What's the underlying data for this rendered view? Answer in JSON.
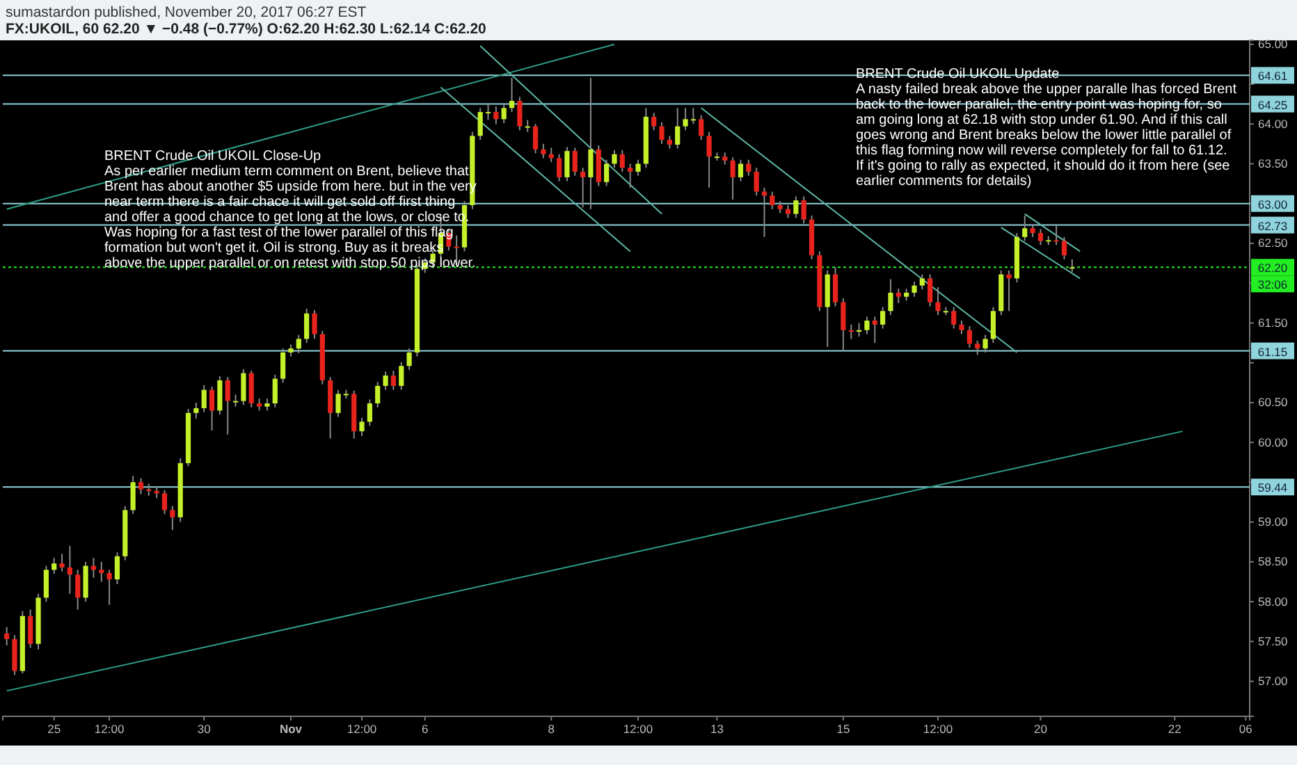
{
  "chart_data": {
    "type": "candlestick",
    "subtitle": "sumastardon published, November 20, 2017 06:27 EST",
    "title": "FX:UKOIL, 60  62.20 ▼ −0.48 (−0.77%)  O:62.20 H:62.30 L:62.14 C:62.20",
    "annotations": [
      "BRENT Crude Oil  UKOIL  Close-Up\nAs per earlier medium term comment on Brent, believe that\nBrent has about another $5 upside from here. but in the very\nnear term there is a fair chace it will get sold off first thing\nand offer a good chance to get long at the lows, or close to.\nWas hoping for a fast test of the lower parallel of this flag\nformation but won't get it. Oil is strong. Buy as it breaks\nabove the upper parallel  or on retest with stop 50 pips lower.",
      "BRENT Crude Oil  UKOIL  Update\nA nasty failed break above the upper paralle lhas forced Brent\nback to the lower parallel, the entry point was hoping for, so\nam going long at 62.18 with stop under 61.90. And if this call\ngoes wrong and Brent breaks below the lower little parallel of\nthis flag forming now will reverse completely for fall to 61.12.\nIf it's going to rally as expected, it should do it from here (see\nearlier comments for details)",
      "32:06"
    ],
    "categories": [
      null,
      null,
      null,
      null,
      null,
      null,
      "25",
      null,
      null,
      null,
      null,
      null,
      null,
      "12:00",
      null,
      null,
      null,
      null,
      null,
      null,
      null,
      null,
      null,
      null,
      null,
      "30",
      null,
      null,
      null,
      null,
      null,
      null,
      null,
      null,
      null,
      null,
      "Nov",
      null,
      null,
      null,
      null,
      null,
      null,
      null,
      null,
      "12:00",
      null,
      null,
      null,
      null,
      null,
      null,
      null,
      "6",
      null,
      null,
      null,
      null,
      null,
      null,
      null,
      null,
      null,
      null,
      null,
      null,
      null,
      null,
      null,
      "8",
      null,
      null,
      null,
      null,
      null,
      null,
      null,
      null,
      null,
      null,
      "12:00",
      null,
      null,
      null,
      null,
      null,
      null,
      null,
      null,
      null,
      "13",
      null,
      null,
      null,
      null,
      null,
      null,
      null,
      null,
      null,
      null,
      null,
      null,
      null,
      null,
      null,
      "15",
      null,
      null,
      null,
      null,
      null,
      null,
      null,
      null,
      null,
      null,
      null,
      "12:00",
      null,
      null,
      null,
      null,
      null,
      null,
      null,
      null,
      null,
      null,
      null,
      null,
      "20",
      null,
      null,
      null,
      null,
      null,
      null,
      null,
      null,
      null,
      null,
      null,
      null,
      null,
      null,
      null,
      null,
      "22",
      null,
      null,
      null,
      null,
      null,
      null,
      null,
      null,
      "06"
    ],
    "ohlc": [
      [
        57.6,
        57.68,
        57.45,
        57.53
      ],
      [
        57.53,
        57.58,
        57.08,
        57.13
      ],
      [
        57.13,
        57.88,
        57.1,
        57.82
      ],
      [
        57.82,
        57.9,
        57.42,
        57.47
      ],
      [
        57.47,
        58.1,
        57.4,
        58.05
      ],
      [
        58.05,
        58.45,
        58.0,
        58.4
      ],
      [
        58.4,
        58.55,
        58.35,
        58.48
      ],
      [
        58.48,
        58.6,
        58.38,
        58.43
      ],
      [
        58.43,
        58.7,
        58.1,
        58.34
      ],
      [
        58.34,
        58.4,
        57.9,
        58.05
      ],
      [
        58.05,
        58.5,
        58.0,
        58.45
      ],
      [
        58.45,
        58.55,
        58.3,
        58.4
      ],
      [
        58.4,
        58.5,
        58.25,
        58.36
      ],
      [
        58.36,
        58.4,
        57.96,
        58.28
      ],
      [
        58.28,
        58.62,
        58.22,
        58.57
      ],
      [
        58.57,
        59.2,
        58.52,
        59.15
      ],
      [
        59.15,
        59.58,
        59.1,
        59.5
      ],
      [
        59.5,
        59.55,
        59.35,
        59.41
      ],
      [
        59.41,
        59.48,
        59.33,
        59.39
      ],
      [
        59.39,
        59.45,
        59.3,
        59.36
      ],
      [
        59.36,
        59.4,
        59.1,
        59.15
      ],
      [
        59.15,
        59.2,
        58.9,
        59.06
      ],
      [
        59.06,
        59.8,
        59.0,
        59.74
      ],
      [
        59.74,
        60.42,
        59.7,
        60.37
      ],
      [
        60.37,
        60.5,
        60.3,
        60.43
      ],
      [
        60.43,
        60.72,
        60.38,
        60.66
      ],
      [
        60.66,
        60.7,
        60.15,
        60.4
      ],
      [
        60.4,
        60.83,
        60.35,
        60.78
      ],
      [
        60.78,
        60.82,
        60.1,
        60.52
      ],
      [
        60.52,
        60.6,
        60.45,
        60.52
      ],
      [
        60.52,
        60.92,
        60.47,
        60.87
      ],
      [
        60.87,
        60.9,
        60.44,
        60.49
      ],
      [
        60.49,
        60.55,
        60.4,
        60.45
      ],
      [
        60.45,
        60.55,
        60.4,
        60.49
      ],
      [
        60.49,
        60.85,
        60.44,
        60.8
      ],
      [
        60.8,
        61.18,
        60.75,
        61.13
      ],
      [
        61.13,
        61.23,
        61.08,
        61.18
      ],
      [
        61.18,
        61.35,
        61.12,
        61.3
      ],
      [
        61.3,
        61.68,
        61.25,
        61.62
      ],
      [
        61.62,
        61.66,
        61.3,
        61.36
      ],
      [
        61.36,
        61.4,
        60.73,
        60.78
      ],
      [
        60.78,
        60.82,
        60.05,
        60.37
      ],
      [
        60.37,
        60.66,
        60.32,
        60.61
      ],
      [
        60.61,
        60.66,
        60.55,
        60.61
      ],
      [
        60.61,
        60.65,
        60.05,
        60.14
      ],
      [
        60.14,
        60.31,
        60.08,
        60.26
      ],
      [
        60.26,
        60.54,
        60.21,
        60.49
      ],
      [
        60.49,
        60.76,
        60.44,
        60.71
      ],
      [
        60.71,
        60.89,
        60.66,
        60.84
      ],
      [
        60.84,
        60.9,
        60.66,
        60.71
      ],
      [
        60.71,
        61.01,
        60.66,
        60.96
      ],
      [
        60.96,
        61.18,
        60.91,
        61.13
      ],
      [
        61.13,
        62.23,
        61.08,
        62.18
      ],
      [
        62.18,
        62.31,
        62.13,
        62.26
      ],
      [
        62.26,
        62.42,
        62.21,
        62.37
      ],
      [
        62.37,
        62.87,
        62.32,
        62.63
      ],
      [
        62.63,
        62.68,
        62.41,
        62.46
      ],
      [
        62.46,
        62.6,
        62.22,
        62.45
      ],
      [
        62.45,
        63.03,
        62.4,
        62.98
      ],
      [
        62.98,
        63.9,
        62.93,
        63.85
      ],
      [
        63.85,
        64.2,
        63.8,
        64.15
      ],
      [
        64.15,
        64.25,
        64.05,
        64.15
      ],
      [
        64.15,
        64.22,
        64.0,
        64.06
      ],
      [
        64.06,
        64.25,
        64.01,
        64.2
      ],
      [
        64.2,
        64.58,
        64.15,
        64.29
      ],
      [
        64.29,
        64.34,
        63.92,
        63.97
      ],
      [
        63.97,
        64.05,
        63.9,
        63.97
      ],
      [
        63.97,
        64.0,
        63.63,
        63.68
      ],
      [
        63.68,
        63.75,
        63.57,
        63.62
      ],
      [
        63.62,
        63.7,
        63.52,
        63.57
      ],
      [
        63.57,
        63.62,
        63.28,
        63.33
      ],
      [
        63.33,
        63.71,
        63.28,
        63.66
      ],
      [
        63.66,
        63.7,
        63.35,
        63.4
      ],
      [
        63.4,
        63.45,
        62.95,
        63.33
      ],
      [
        63.33,
        64.58,
        62.93,
        63.68
      ],
      [
        63.68,
        63.73,
        63.22,
        63.27
      ],
      [
        63.27,
        63.55,
        63.22,
        63.5
      ],
      [
        63.5,
        63.67,
        63.45,
        63.62
      ],
      [
        63.62,
        63.67,
        63.4,
        63.45
      ],
      [
        63.45,
        63.5,
        63.2,
        63.4
      ],
      [
        63.4,
        63.55,
        63.35,
        63.5
      ],
      [
        63.5,
        64.2,
        63.45,
        64.09
      ],
      [
        64.09,
        64.14,
        63.92,
        63.97
      ],
      [
        63.97,
        64.02,
        63.75,
        63.8
      ],
      [
        63.8,
        63.85,
        63.69,
        63.74
      ],
      [
        63.74,
        64.2,
        63.69,
        63.97
      ],
      [
        63.97,
        64.2,
        63.92,
        64.06
      ],
      [
        64.06,
        64.2,
        64.0,
        64.06
      ],
      [
        64.06,
        64.11,
        63.8,
        63.85
      ],
      [
        63.85,
        63.9,
        63.2,
        63.59
      ],
      [
        63.59,
        63.64,
        63.54,
        63.59
      ],
      [
        63.59,
        63.64,
        63.49,
        63.54
      ],
      [
        63.54,
        63.58,
        63.05,
        63.33
      ],
      [
        63.33,
        63.55,
        63.28,
        63.5
      ],
      [
        63.5,
        63.55,
        63.35,
        63.4
      ],
      [
        63.4,
        63.45,
        63.1,
        63.15
      ],
      [
        63.15,
        63.2,
        62.58,
        63.1
      ],
      [
        63.1,
        63.15,
        62.93,
        62.98
      ],
      [
        62.98,
        63.03,
        62.88,
        62.93
      ],
      [
        62.93,
        62.98,
        62.82,
        62.87
      ],
      [
        62.87,
        63.09,
        62.82,
        63.04
      ],
      [
        63.04,
        63.09,
        62.75,
        62.8
      ],
      [
        62.8,
        62.85,
        62.3,
        62.35
      ],
      [
        62.35,
        62.4,
        61.65,
        61.7
      ],
      [
        61.7,
        62.16,
        61.2,
        62.11
      ],
      [
        62.11,
        62.2,
        61.71,
        61.76
      ],
      [
        61.76,
        61.81,
        61.15,
        61.41
      ],
      [
        61.41,
        61.48,
        61.3,
        61.39
      ],
      [
        61.39,
        61.5,
        61.33,
        61.41
      ],
      [
        61.41,
        61.58,
        61.36,
        61.53
      ],
      [
        61.53,
        61.58,
        61.25,
        61.48
      ],
      [
        61.48,
        61.7,
        61.43,
        61.65
      ],
      [
        61.65,
        62.05,
        61.6,
        61.88
      ],
      [
        61.88,
        61.93,
        61.75,
        61.83
      ],
      [
        61.83,
        61.93,
        61.78,
        61.88
      ],
      [
        61.88,
        62.02,
        61.83,
        61.97
      ],
      [
        61.97,
        62.11,
        61.92,
        62.06
      ],
      [
        62.06,
        62.11,
        61.71,
        61.76
      ],
      [
        61.76,
        61.95,
        61.6,
        61.65
      ],
      [
        61.65,
        61.7,
        61.6,
        61.65
      ],
      [
        61.65,
        61.7,
        61.43,
        61.48
      ],
      [
        61.48,
        61.53,
        61.36,
        61.41
      ],
      [
        61.41,
        61.46,
        61.19,
        61.24
      ],
      [
        61.24,
        61.28,
        61.1,
        61.18
      ],
      [
        61.18,
        61.35,
        61.13,
        61.3
      ],
      [
        61.3,
        61.7,
        61.25,
        61.65
      ],
      [
        61.65,
        62.16,
        61.6,
        62.11
      ],
      [
        62.11,
        62.16,
        61.65,
        62.06
      ],
      [
        62.06,
        62.63,
        62.01,
        62.58
      ],
      [
        62.58,
        62.85,
        62.53,
        62.69
      ],
      [
        62.69,
        62.74,
        62.58,
        62.63
      ],
      [
        62.63,
        62.68,
        62.48,
        62.53
      ],
      [
        62.53,
        62.59,
        62.48,
        62.54
      ],
      [
        62.54,
        62.72,
        62.48,
        62.53
      ],
      [
        62.53,
        62.58,
        62.3,
        62.35
      ],
      [
        62.2,
        62.3,
        62.14,
        62.2
      ],
      null,
      null,
      null,
      null,
      null,
      null,
      null,
      null,
      null,
      null,
      null,
      null,
      null,
      null,
      null,
      null,
      null,
      null,
      null,
      null,
      null,
      null
    ],
    "series": [
      {
        "type": "line",
        "color": "#2e9e88",
        "values": [
          56.88,
          null,
          null,
          null,
          null,
          null,
          null,
          null,
          null,
          null,
          null,
          null,
          null,
          null,
          null,
          null,
          null,
          null,
          null,
          null,
          null,
          null,
          null,
          null,
          null,
          null,
          null,
          null,
          null,
          null,
          null,
          null,
          null,
          null,
          null,
          null,
          null,
          null,
          null,
          null,
          null,
          null,
          null,
          null,
          null,
          null,
          null,
          null,
          null,
          null,
          null,
          null,
          null,
          null,
          null,
          null,
          null,
          null,
          null,
          null,
          null,
          null,
          null,
          null,
          null,
          null,
          null,
          null,
          null,
          null,
          null,
          null,
          null,
          null,
          null,
          null,
          null,
          null,
          null,
          null,
          null,
          null,
          null,
          null,
          null,
          null,
          null,
          null,
          null,
          null,
          null,
          null,
          null,
          null,
          null,
          null,
          null,
          null,
          null,
          null,
          null,
          null,
          null,
          null,
          null,
          null,
          null,
          null,
          null,
          null,
          null,
          null,
          null,
          null,
          null,
          null,
          null,
          null,
          null,
          null,
          null,
          null,
          null,
          null,
          null,
          null,
          null,
          null,
          null,
          null,
          null,
          null,
          null,
          null,
          null,
          null,
          null,
          null,
          null,
          null,
          null,
          null,
          null,
          null,
          null,
          null,
          null,
          null,
          null,
          60.14,
          null,
          null,
          null,
          null,
          null,
          null,
          null,
          null
        ]
      },
      {
        "type": "line",
        "color": "#2e9e88",
        "values": [
          62.93,
          null,
          null,
          null,
          null,
          null,
          null,
          null,
          null,
          null,
          null,
          null,
          null,
          null,
          null,
          null,
          null,
          null,
          null,
          null,
          null,
          null,
          null,
          null,
          null,
          null,
          null,
          null,
          null,
          null,
          null,
          null,
          null,
          null,
          null,
          null,
          null,
          null,
          null,
          null,
          null,
          null,
          null,
          null,
          null,
          null,
          null,
          null,
          null,
          null,
          null,
          null,
          null,
          null,
          null,
          null,
          null,
          null,
          null,
          null,
          null,
          null,
          null,
          null,
          null,
          null,
          null,
          null,
          null,
          null,
          null,
          null,
          null,
          null,
          null,
          null,
          null,
          65.0,
          null,
          null,
          null,
          null,
          null,
          null,
          null,
          null,
          null,
          null,
          null,
          null,
          null,
          null,
          null,
          null,
          null,
          null,
          null,
          null,
          null,
          null,
          null,
          null,
          null,
          null,
          null,
          null,
          null,
          null,
          null,
          null,
          null,
          null,
          null,
          null,
          null,
          null,
          null,
          null,
          null,
          null,
          null,
          null,
          null,
          null,
          null,
          null,
          null,
          null,
          null,
          null,
          null,
          null,
          null,
          null,
          null,
          null,
          null,
          null,
          null,
          null,
          null,
          null,
          null,
          null,
          null,
          null,
          null,
          null,
          null,
          null,
          null,
          null,
          null,
          null,
          null,
          null,
          null,
          null
        ]
      },
      {
        "type": "line",
        "color": "#5fb8a8",
        "values": [
          null,
          null,
          null,
          null,
          null,
          null,
          null,
          null,
          null,
          null,
          null,
          null,
          null,
          null,
          null,
          null,
          null,
          null,
          null,
          null,
          null,
          null,
          null,
          null,
          null,
          null,
          null,
          null,
          null,
          null,
          null,
          null,
          null,
          null,
          null,
          null,
          null,
          null,
          null,
          null,
          null,
          null,
          null,
          null,
          null,
          null,
          null,
          null,
          null,
          null,
          null,
          null,
          null,
          null,
          null,
          null,
          null,
          null,
          null,
          null,
          64.98,
          null,
          null,
          null,
          null,
          null,
          null,
          null,
          null,
          null,
          null,
          null,
          null,
          null,
          null,
          null,
          null,
          null,
          null,
          null,
          null,
          null,
          null,
          62.87,
          null,
          null,
          null,
          null,
          null,
          null,
          null,
          null,
          null,
          null,
          null,
          null,
          null,
          null,
          null,
          null,
          null,
          null,
          null,
          null,
          null,
          null,
          null,
          null,
          null,
          null,
          null,
          null,
          null,
          null,
          null,
          null,
          null,
          null,
          null,
          null,
          null,
          null,
          null,
          null,
          null,
          null,
          null,
          null,
          null,
          null,
          null,
          null,
          null,
          null,
          null,
          null,
          null,
          null,
          null,
          null,
          null,
          null,
          null,
          null,
          null,
          null,
          null,
          null,
          null,
          null,
          null,
          null,
          null,
          null,
          null,
          null,
          null,
          null
        ]
      },
      {
        "type": "line",
        "color": "#5fb8a8",
        "values": [
          null,
          null,
          null,
          null,
          null,
          null,
          null,
          null,
          null,
          null,
          null,
          null,
          null,
          null,
          null,
          null,
          null,
          null,
          null,
          null,
          null,
          null,
          null,
          null,
          null,
          null,
          null,
          null,
          null,
          null,
          null,
          null,
          null,
          null,
          null,
          null,
          null,
          null,
          null,
          null,
          null,
          null,
          null,
          null,
          null,
          null,
          null,
          null,
          null,
          null,
          null,
          null,
          null,
          null,
          null,
          64.46,
          null,
          null,
          null,
          null,
          null,
          null,
          null,
          null,
          null,
          null,
          null,
          null,
          null,
          null,
          null,
          null,
          null,
          null,
          null,
          null,
          null,
          null,
          null,
          62.4,
          null,
          null,
          null,
          null,
          null,
          null,
          null,
          null,
          null,
          null,
          null,
          null,
          null,
          null,
          null,
          null,
          null,
          null,
          null,
          null,
          null,
          null,
          null,
          null,
          null,
          null,
          null,
          null,
          null,
          null,
          null,
          null,
          null,
          null,
          null,
          null,
          null,
          null,
          null,
          null,
          null,
          null,
          null,
          null,
          null,
          null,
          null,
          null,
          null,
          null,
          null,
          null,
          null,
          null,
          null,
          null,
          null,
          null,
          null,
          null,
          null,
          null,
          null,
          null,
          null,
          null,
          null,
          null,
          null,
          null,
          null,
          null,
          null,
          null,
          null,
          null,
          null,
          null
        ]
      },
      {
        "type": "line",
        "color": "#5fb8a8",
        "values": [
          null,
          null,
          null,
          null,
          null,
          null,
          null,
          null,
          null,
          null,
          null,
          null,
          null,
          null,
          null,
          null,
          null,
          null,
          null,
          null,
          null,
          null,
          null,
          null,
          null,
          null,
          null,
          null,
          null,
          null,
          null,
          null,
          null,
          null,
          null,
          null,
          null,
          null,
          null,
          null,
          null,
          null,
          null,
          null,
          null,
          null,
          null,
          null,
          null,
          null,
          null,
          null,
          null,
          null,
          null,
          null,
          null,
          null,
          null,
          null,
          null,
          null,
          null,
          null,
          null,
          null,
          null,
          null,
          null,
          null,
          null,
          null,
          null,
          null,
          null,
          null,
          null,
          null,
          null,
          null,
          null,
          null,
          null,
          null,
          null,
          null,
          null,
          null,
          64.2,
          null,
          null,
          null,
          null,
          null,
          null,
          null,
          null,
          null,
          null,
          null,
          null,
          null,
          null,
          null,
          null,
          null,
          null,
          null,
          null,
          null,
          null,
          null,
          null,
          null,
          null,
          null,
          null,
          null,
          null,
          null,
          null,
          null,
          null,
          null,
          null,
          null,
          null,
          null,
          61.13,
          null,
          null,
          null,
          null,
          null,
          null,
          null,
          null,
          null,
          null,
          null,
          null,
          null,
          null,
          null,
          null,
          null,
          null,
          null,
          null,
          null,
          null,
          null,
          null,
          null,
          null,
          null,
          null,
          null
        ]
      },
      {
        "type": "line",
        "color": "#5fb8a8",
        "values": [
          null,
          null,
          null,
          null,
          null,
          null,
          null,
          null,
          null,
          null,
          null,
          null,
          null,
          null,
          null,
          null,
          null,
          null,
          null,
          null,
          null,
          null,
          null,
          null,
          null,
          null,
          null,
          null,
          null,
          null,
          null,
          null,
          null,
          null,
          null,
          null,
          null,
          null,
          null,
          null,
          null,
          null,
          null,
          null,
          null,
          null,
          null,
          null,
          null,
          null,
          null,
          null,
          null,
          null,
          null,
          null,
          null,
          null,
          null,
          null,
          null,
          null,
          null,
          null,
          null,
          null,
          null,
          null,
          null,
          null,
          null,
          null,
          null,
          null,
          null,
          null,
          null,
          null,
          null,
          null,
          null,
          null,
          null,
          null,
          null,
          null,
          null,
          null,
          null,
          null,
          null,
          null,
          null,
          null,
          null,
          null,
          null,
          null,
          null,
          null,
          null,
          null,
          null,
          null,
          null,
          null,
          null,
          null,
          null,
          null,
          null,
          null,
          null,
          null,
          null,
          null,
          null,
          null,
          null,
          null,
          null,
          null,
          null,
          null,
          null,
          null,
          null,
          null,
          null,
          62.87,
          null,
          null,
          null,
          null,
          null,
          null,
          62.4,
          null,
          null,
          null,
          null,
          null,
          null,
          null,
          null,
          null,
          null,
          null,
          null,
          null,
          null,
          null,
          null,
          null,
          null,
          null,
          null,
          null
        ]
      },
      {
        "type": "line",
        "color": "#5fb8a8",
        "values": [
          null,
          null,
          null,
          null,
          null,
          null,
          null,
          null,
          null,
          null,
          null,
          null,
          null,
          null,
          null,
          null,
          null,
          null,
          null,
          null,
          null,
          null,
          null,
          null,
          null,
          null,
          null,
          null,
          null,
          null,
          null,
          null,
          null,
          null,
          null,
          null,
          null,
          null,
          null,
          null,
          null,
          null,
          null,
          null,
          null,
          null,
          null,
          null,
          null,
          null,
          null,
          null,
          null,
          null,
          null,
          null,
          null,
          null,
          null,
          null,
          null,
          null,
          null,
          null,
          null,
          null,
          null,
          null,
          null,
          null,
          null,
          null,
          null,
          null,
          null,
          null,
          null,
          null,
          null,
          null,
          null,
          null,
          null,
          null,
          null,
          null,
          null,
          null,
          null,
          null,
          null,
          null,
          null,
          null,
          null,
          null,
          null,
          null,
          null,
          null,
          null,
          null,
          null,
          null,
          null,
          null,
          null,
          null,
          null,
          null,
          null,
          null,
          null,
          null,
          null,
          null,
          null,
          null,
          null,
          null,
          null,
          null,
          null,
          null,
          null,
          null,
          62.7,
          null,
          null,
          null,
          null,
          null,
          null,
          null,
          null,
          null,
          62.06,
          null,
          null,
          null,
          null,
          null,
          null,
          null,
          null,
          null,
          null,
          null,
          null,
          null,
          null,
          null,
          null,
          null,
          null,
          null,
          null,
          null
        ]
      }
    ],
    "ylim": [
      56.56,
      65.05
    ],
    "yticks": [
      {
        "value": 57,
        "label": "57.00"
      },
      {
        "value": 57.5,
        "label": "57.50"
      },
      {
        "value": 58,
        "label": "58.00"
      },
      {
        "value": 58.5,
        "label": "58.50"
      },
      {
        "value": 59,
        "label": "59.00"
      },
      {
        "value": 59.5,
        "label": null
      },
      {
        "value": 60,
        "label": "60.00"
      },
      {
        "value": 60.5,
        "label": "60.50"
      },
      {
        "value": 61,
        "label": null
      },
      {
        "value": 61.5,
        "label": "61.50"
      },
      {
        "value": 62,
        "label": null
      },
      {
        "value": 62.5,
        "label": "62.50"
      },
      {
        "value": 63,
        "label": null
      },
      {
        "value": 63.5,
        "label": "63.50"
      },
      {
        "value": 64,
        "label": "64.00"
      },
      {
        "value": 64.5,
        "label": null
      },
      {
        "value": 65,
        "label": "65.00"
      }
    ],
    "ref_lines": [
      {
        "axis": "y",
        "value": 64.61,
        "label": "64.61",
        "color": "#8fd3dc"
      },
      {
        "axis": "y",
        "value": 64.25,
        "label": "64.25",
        "color": "#8fd3dc"
      },
      {
        "axis": "y",
        "value": 63.0,
        "label": "63.00",
        "color": "#8fd3dc"
      },
      {
        "axis": "y",
        "value": 62.73,
        "label": "62.73",
        "color": "#8fd3dc"
      },
      {
        "axis": "y",
        "value": 62.2,
        "label": "62.20",
        "color": "#22ee22",
        "line_style": "dotted"
      },
      {
        "axis": "y",
        "value": 61.15,
        "label": "61.15",
        "color": "#8fd3dc"
      },
      {
        "axis": "y",
        "value": 59.44,
        "label": "59.44",
        "color": "#8fd3dc"
      }
    ],
    "grid": false
  }
}
